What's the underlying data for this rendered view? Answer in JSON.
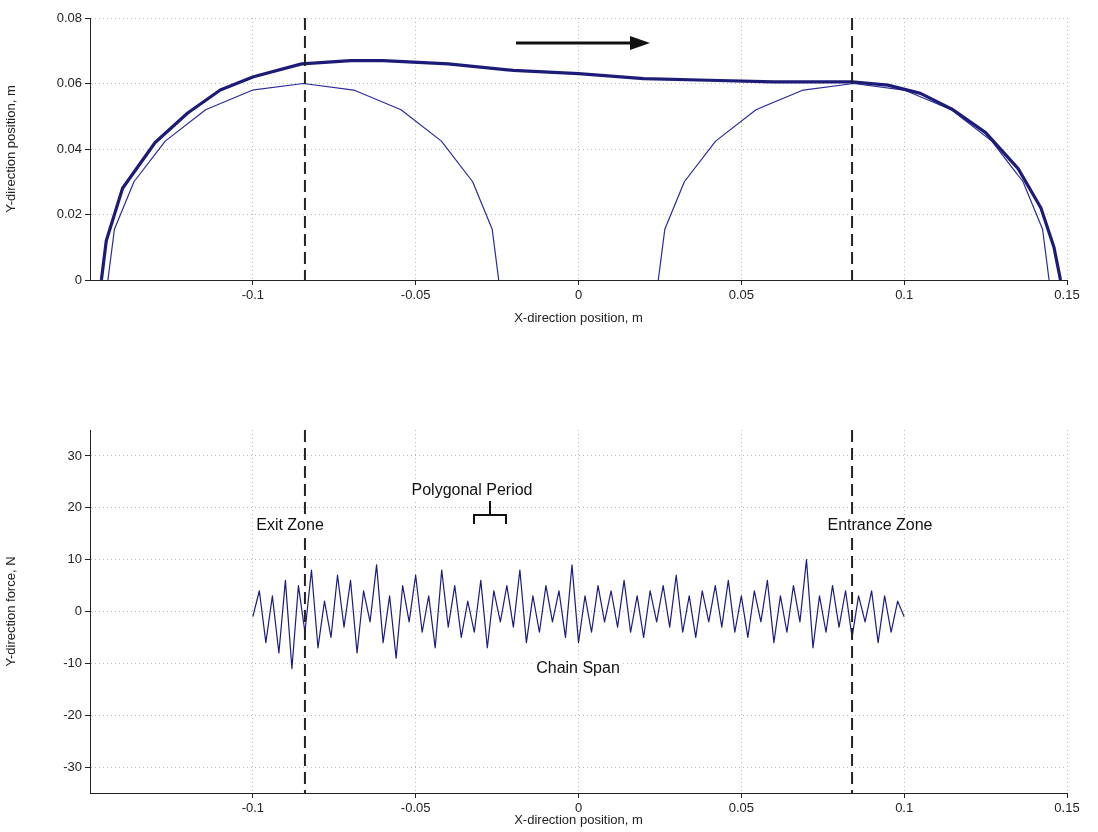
{
  "chart_data": [
    {
      "type": "line",
      "xlabel": "X-direction position, m",
      "ylabel": "Y-direction position, m",
      "xlim": [
        -0.15,
        0.15
      ],
      "xticks": [
        -0.1,
        -0.05,
        0,
        0.05,
        0.1,
        0.15
      ],
      "ylim": [
        0,
        0.08
      ],
      "yticks": [
        0,
        0.02,
        0.04,
        0.06,
        0.08
      ],
      "grid": true,
      "legend": false,
      "marker": "none",
      "line_style": "solid",
      "series": [
        {
          "color": "#1c1c78",
          "x": [
            -0.1465,
            -0.145,
            -0.14,
            -0.13,
            -0.12,
            -0.11,
            -0.1,
            -0.085,
            -0.07,
            -0.06,
            -0.04,
            -0.02,
            0,
            0.02,
            0.04,
            0.06,
            0.084,
            0.095,
            0.105,
            0.115,
            0.125,
            0.135,
            0.142,
            0.146,
            0.148
          ],
          "values": [
            0,
            0.012,
            0.028,
            0.042,
            0.051,
            0.058,
            0.062,
            0.066,
            0.067,
            0.067,
            0.066,
            0.064,
            0.063,
            0.0615,
            0.061,
            0.0605,
            0.0605,
            0.0595,
            0.057,
            0.052,
            0.045,
            0.034,
            0.022,
            0.01,
            0
          ]
        },
        {
          "color": "#2a2a9c",
          "x": [
            -0.1445,
            -0.1425,
            -0.1365,
            -0.1269,
            -0.1145,
            -0.1,
            -0.0845,
            -0.069,
            -0.0545,
            -0.0421,
            -0.0325,
            -0.0265,
            -0.0245
          ],
          "values": [
            0,
            0.0155,
            0.03,
            0.0424,
            0.052,
            0.058,
            0.06,
            0.058,
            0.052,
            0.0424,
            0.03,
            0.0155,
            0
          ]
        },
        {
          "color": "#2a2a9c",
          "x": [
            0.0245,
            0.0265,
            0.0325,
            0.0421,
            0.0545,
            0.069,
            0.0845,
            0.1,
            0.1145,
            0.1269,
            0.1365,
            0.1425,
            0.1445
          ],
          "values": [
            0,
            0.0155,
            0.03,
            0.0424,
            0.052,
            0.058,
            0.06,
            0.058,
            0.052,
            0.0424,
            0.03,
            0.0155,
            0
          ]
        }
      ],
      "ref_lines": [
        {
          "axis": "x",
          "value": -0.084,
          "color": "#222222",
          "line_style": "dashed"
        },
        {
          "axis": "x",
          "value": 0.084,
          "color": "#222222",
          "line_style": "dashed"
        }
      ]
    },
    {
      "type": "line",
      "xlabel": "X-direction position, m",
      "ylabel": "Y-direction force, N",
      "xlim": [
        -0.15,
        0.15
      ],
      "xticks": [
        -0.1,
        -0.05,
        0,
        0.05,
        0.1,
        0.15
      ],
      "ylim": [
        -35,
        35
      ],
      "yticks": [
        -30,
        -20,
        -10,
        0,
        10,
        20,
        30
      ],
      "grid": true,
      "legend": false,
      "marker": "none",
      "line_style": "solid",
      "annotations": [
        "Exit Zone",
        "Polygonal Period",
        "Entrance Zone",
        "Chain Span"
      ],
      "series": [
        {
          "color": "#1c1c80",
          "x": [
            -0.1,
            -0.098,
            -0.096,
            -0.094,
            -0.092,
            -0.09,
            -0.088,
            -0.086,
            -0.084,
            -0.082,
            -0.08,
            -0.078,
            -0.076,
            -0.074,
            -0.072,
            -0.07,
            -0.068,
            -0.066,
            -0.064,
            -0.062,
            -0.06,
            -0.058,
            -0.056,
            -0.054,
            -0.052,
            -0.05,
            -0.048,
            -0.046,
            -0.044,
            -0.042,
            -0.04,
            -0.038,
            -0.036,
            -0.034,
            -0.032,
            -0.03,
            -0.028,
            -0.026,
            -0.024,
            -0.022,
            -0.02,
            -0.018,
            -0.016,
            -0.014,
            -0.012,
            -0.01,
            -0.008,
            -0.006,
            -0.004,
            -0.002,
            0,
            0.002,
            0.004,
            0.006,
            0.008,
            0.01,
            0.012,
            0.014,
            0.016,
            0.018,
            0.02,
            0.022,
            0.024,
            0.026,
            0.028,
            0.03,
            0.032,
            0.034,
            0.036,
            0.038,
            0.04,
            0.042,
            0.044,
            0.046,
            0.048,
            0.05,
            0.052,
            0.054,
            0.056,
            0.058,
            0.06,
            0.062,
            0.064,
            0.066,
            0.068,
            0.07,
            0.072,
            0.074,
            0.076,
            0.078,
            0.08,
            0.082,
            0.084,
            0.086,
            0.088,
            0.09,
            0.092,
            0.094,
            0.096,
            0.098,
            0.1
          ],
          "values": [
            -1,
            4,
            -6,
            3,
            -8,
            6,
            -11,
            5,
            -4,
            8,
            -7,
            2,
            -5,
            7,
            -3,
            6,
            -8,
            4,
            -2,
            9,
            -6,
            3,
            -9,
            5,
            -2,
            7,
            -4,
            3,
            -7,
            8,
            -3,
            5,
            -5,
            2,
            -4,
            6,
            -7,
            4,
            -2,
            5,
            -3,
            8,
            -6,
            3,
            -4,
            5,
            -2,
            4,
            -5,
            9,
            -6,
            3,
            -4,
            5,
            -2,
            4,
            -3,
            6,
            -4,
            3,
            -5,
            4,
            -2,
            5,
            -3,
            7,
            -4,
            3,
            -5,
            4,
            -2,
            5,
            -3,
            6,
            -4,
            3,
            -5,
            4,
            -2,
            6,
            -6,
            3,
            -4,
            5,
            -2,
            10,
            -7,
            3,
            -4,
            5,
            -3,
            4,
            -5,
            3,
            -2,
            4,
            -6,
            3,
            -4,
            2,
            -1
          ]
        }
      ],
      "ref_lines": [
        {
          "axis": "x",
          "value": -0.084,
          "color": "#222222",
          "line_style": "dashed"
        },
        {
          "axis": "x",
          "value": 0.084,
          "color": "#222222",
          "line_style": "dashed"
        }
      ]
    }
  ]
}
